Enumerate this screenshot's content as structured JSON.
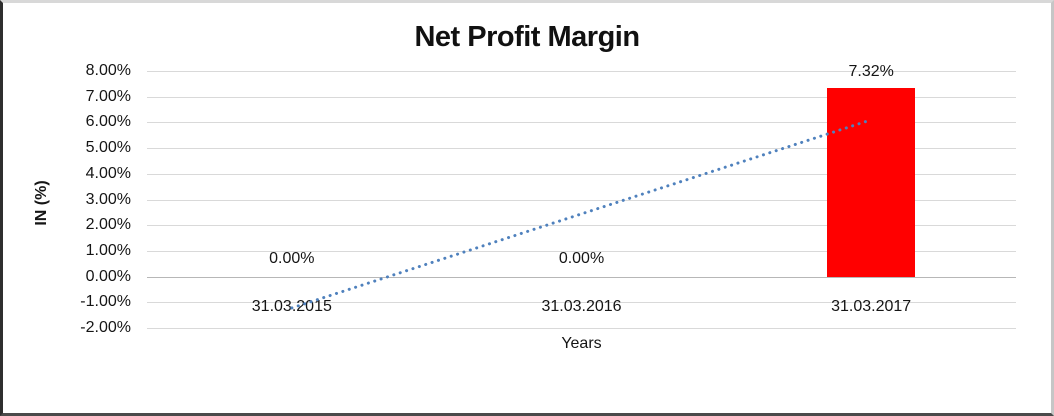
{
  "chart_data": {
    "type": "bar",
    "title": "Net Profit Margin",
    "xlabel": "Years",
    "ylabel": "IN (%)",
    "categories": [
      "31.03.2015",
      "31.03.2016",
      "31.03.2017"
    ],
    "values": [
      0,
      0,
      7.32
    ],
    "value_labels": [
      "0.00%",
      "0.00%",
      "7.32%"
    ],
    "ylim": [
      -2,
      8
    ],
    "yticks": [
      {
        "value": 8,
        "label": "8.00%"
      },
      {
        "value": 7,
        "label": "7.00%"
      },
      {
        "value": 6,
        "label": "6.00%"
      },
      {
        "value": 5,
        "label": "5.00%"
      },
      {
        "value": 4,
        "label": "4.00%"
      },
      {
        "value": 3,
        "label": "3.00%"
      },
      {
        "value": 2,
        "label": "2.00%"
      },
      {
        "value": 1,
        "label": "1.00%"
      },
      {
        "value": 0,
        "label": "0.00%"
      },
      {
        "value": -1,
        "label": "-1.00%"
      },
      {
        "value": -2,
        "label": "-2.00%"
      }
    ],
    "grid": true,
    "legend_position": "none",
    "bar_color": "#ff0000",
    "trendline": {
      "kind": "linear-dotted",
      "color": "#4f81bd",
      "start_category": "31.03.2015",
      "end_category": "31.03.2017",
      "start_value": -1.22,
      "end_value": 6.1
    }
  }
}
